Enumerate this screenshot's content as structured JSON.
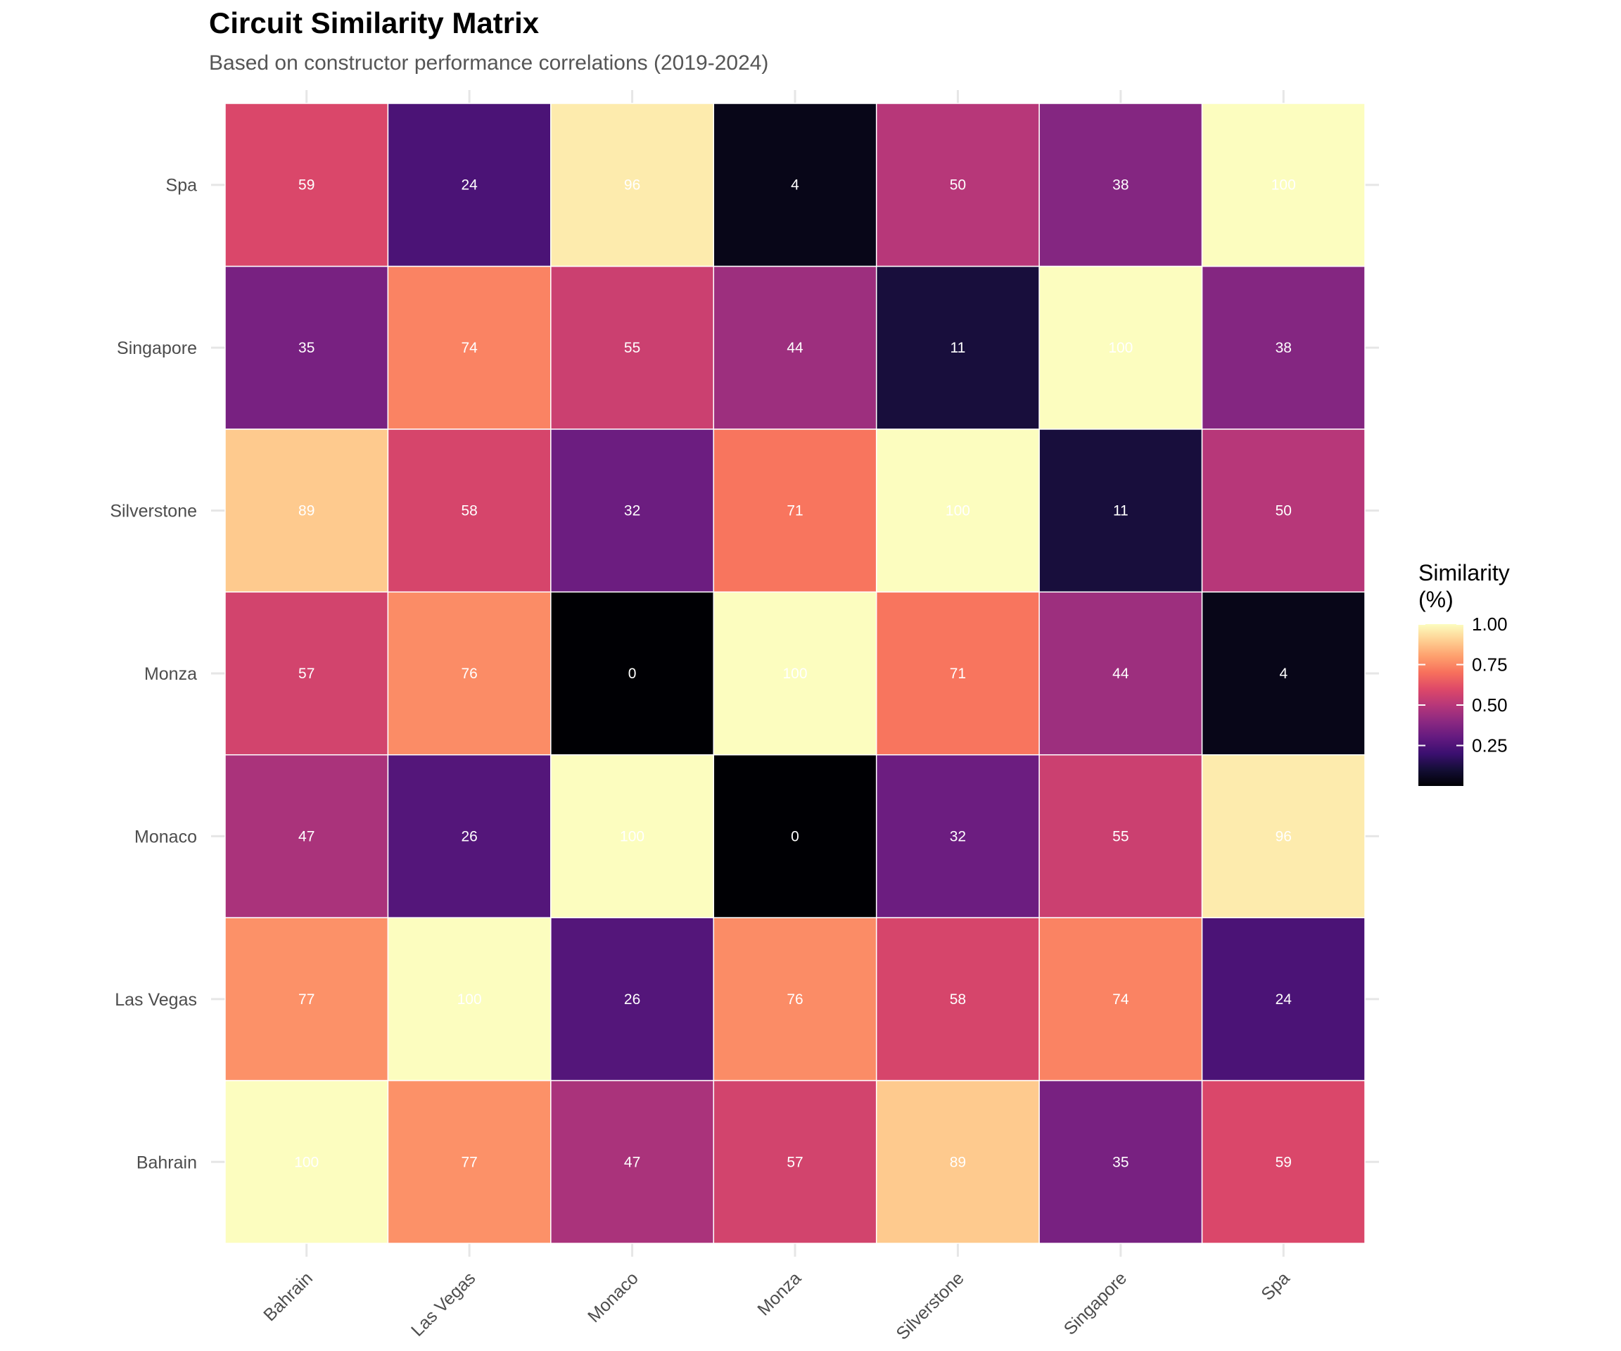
{
  "chart_data": {
    "type": "heatmap",
    "title": "Circuit Similarity Matrix",
    "subtitle": "Based on constructor performance correlations (2019-2024)",
    "xlabel": "",
    "ylabel": "",
    "x_categories": [
      "Bahrain",
      "Las Vegas",
      "Monaco",
      "Monza",
      "Silverstone",
      "Singapore",
      "Spa"
    ],
    "y_categories": [
      "Bahrain",
      "Las Vegas",
      "Monaco",
      "Monza",
      "Silverstone",
      "Singapore",
      "Spa"
    ],
    "matrix": [
      [
        100,
        77,
        47,
        57,
        89,
        35,
        59
      ],
      [
        77,
        100,
        26,
        76,
        58,
        74,
        24
      ],
      [
        47,
        26,
        100,
        0,
        32,
        55,
        96
      ],
      [
        57,
        76,
        0,
        100,
        71,
        44,
        4
      ],
      [
        89,
        58,
        32,
        71,
        100,
        11,
        50
      ],
      [
        35,
        74,
        55,
        44,
        11,
        100,
        38
      ],
      [
        59,
        24,
        96,
        4,
        50,
        38,
        100
      ]
    ],
    "value_range": [
      0,
      100
    ],
    "colorscale": "magma",
    "grid": true,
    "legend": {
      "title_lines": [
        "Similarity",
        "(%)"
      ],
      "ticks": [
        0.25,
        0.5,
        0.75,
        1.0
      ],
      "tick_labels": [
        "0.25",
        "0.50",
        "0.75",
        "1.00"
      ],
      "range": [
        0,
        1
      ],
      "placement": "right"
    }
  }
}
